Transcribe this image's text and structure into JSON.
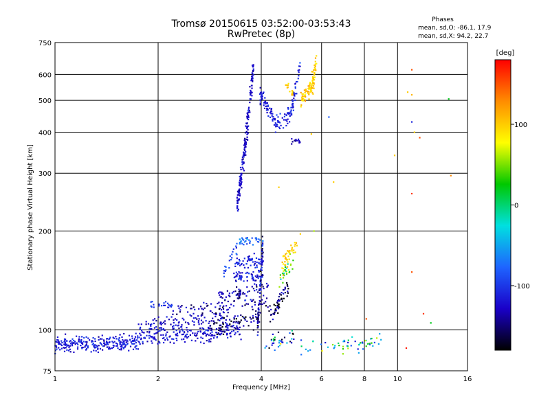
{
  "chart_data": {
    "type": "scatter",
    "title": "Tromsø 20150615 03:52:00-03:53:43",
    "subtitle": "RwPretec (8p)",
    "xlabel": "Frequency [MHz]",
    "ylabel": "Stationary phase Virtual Height [km]",
    "x_scale": "log",
    "y_scale": "log",
    "xlim": [
      1,
      16
    ],
    "ylim": [
      75,
      750
    ],
    "x_ticks": [
      1,
      2,
      4,
      6,
      8,
      10,
      16
    ],
    "x_tick_labels": [
      "1",
      "2",
      "4",
      "6",
      "8",
      "10",
      "16"
    ],
    "y_ticks": [
      75,
      100,
      200,
      300,
      400,
      500,
      600,
      750
    ],
    "y_tick_labels": [
      "75",
      "100",
      "200",
      "300",
      "400",
      "500",
      "600",
      "750"
    ],
    "grid": true,
    "legend": {
      "title": "Phases",
      "lines": [
        "mean, sd,O: -86.1, 17.9",
        "mean, sd,X:  94.2, 22.7"
      ],
      "placement": "top-right"
    },
    "colorbar": {
      "label": "[deg]",
      "range": [
        -180,
        180
      ],
      "ticks": [
        100,
        0,
        -100
      ],
      "tick_labels": [
        "100",
        "0",
        "-100"
      ],
      "colors": [
        "#ff0000",
        "#ff8c00",
        "#ffff00",
        "#00c800",
        "#00e0e0",
        "#1e64ff",
        "#1a00c8",
        "#000000"
      ]
    },
    "traces": [
      {
        "name": "",
        "segments": [
          {
            "f0": 1.0,
            "f1": 1.75,
            "h0": 90,
            "h1": 92,
            "n": 260,
            "sd": 0.028,
            "phase": -115,
            "ps": 12
          },
          {
            "f0": 1.75,
            "f1": 3.5,
            "h0": 94,
            "h1": 100,
            "n": 200,
            "sd": 0.028,
            "phase": -120,
            "ps": 12
          },
          {
            "f0": 1.75,
            "f1": 3.2,
            "h0": 102,
            "h1": 110,
            "n": 110,
            "sd": 0.03,
            "phase": -125,
            "ps": 14
          },
          {
            "f0": 1.9,
            "f1": 2.2,
            "h0": 119,
            "h1": 119,
            "n": 22,
            "sd": 0.012,
            "phase": -100,
            "ps": 10
          },
          {
            "f0": 2.2,
            "f1": 4.2,
            "h0": 114,
            "h1": 124,
            "n": 80,
            "sd": 0.025,
            "phase": -140,
            "ps": 18
          },
          {
            "f0": 2.8,
            "f1": 4.6,
            "h0": 100,
            "h1": 116,
            "n": 90,
            "sd": 0.03,
            "phase": -150,
            "ps": 22
          },
          {
            "f0": 3.0,
            "f1": 4.2,
            "h0": 126,
            "h1": 136,
            "n": 60,
            "sd": 0.02,
            "phase": -135,
            "ps": 18
          },
          {
            "f0": 3.3,
            "f1": 4.05,
            "h0": 144,
            "h1": 146,
            "n": 60,
            "sd": 0.02,
            "phase": -115,
            "ps": 15
          },
          {
            "f0": 3.35,
            "f1": 4.05,
            "h0": 160,
            "h1": 162,
            "n": 55,
            "sd": 0.02,
            "phase": -110,
            "ps": 14
          },
          {
            "f0": 3.1,
            "f1": 3.4,
            "h0": 150,
            "h1": 178,
            "n": 20,
            "sd": 0.025,
            "phase": -90,
            "ps": 12
          },
          {
            "f0": 3.45,
            "f1": 4.05,
            "h0": 185,
            "h1": 188,
            "n": 35,
            "sd": 0.018,
            "phase": -75,
            "ps": 15
          },
          {
            "f0": 3.9,
            "f1": 4.05,
            "h0": 100,
            "h1": 190,
            "n": 80,
            "sd": 0.05,
            "phase": -130,
            "ps": 25
          },
          {
            "f0": 4.3,
            "f1": 4.8,
            "h0": 112,
            "h1": 135,
            "n": 40,
            "sd": 0.03,
            "phase": -150,
            "ps": 28
          },
          {
            "f0": 4.6,
            "f1": 5.1,
            "h0": 160,
            "h1": 185,
            "n": 40,
            "sd": 0.03,
            "phase": 95,
            "ps": 12
          },
          {
            "f0": 4.5,
            "f1": 5.0,
            "h0": 140,
            "h1": 165,
            "n": 30,
            "sd": 0.03,
            "phase": 45,
            "ps": 40
          },
          {
            "f0": 4.1,
            "f1": 5.0,
            "h0": 90,
            "h1": 95,
            "n": 35,
            "sd": 0.03,
            "phase": -90,
            "ps": 70
          },
          {
            "f0": 5.2,
            "f1": 9.0,
            "h0": 88,
            "h1": 93,
            "n": 55,
            "sd": 0.03,
            "phase": -20,
            "ps": 70
          },
          {
            "f0": 3.4,
            "f1": 3.5,
            "h0": 240,
            "h1": 300,
            "n": 60,
            "sd": 0.04,
            "phase": -125,
            "ps": 10
          },
          {
            "f0": 3.5,
            "f1": 3.65,
            "h0": 300,
            "h1": 420,
            "n": 70,
            "sd": 0.05,
            "phase": -125,
            "ps": 10
          },
          {
            "f0": 3.65,
            "f1": 3.8,
            "h0": 420,
            "h1": 640,
            "n": 55,
            "sd": 0.04,
            "phase": -125,
            "ps": 10
          },
          {
            "f0": 3.95,
            "f1": 4.4,
            "h0": 520,
            "h1": 430,
            "n": 60,
            "sd": 0.03,
            "phase": -115,
            "ps": 12
          },
          {
            "f0": 4.4,
            "f1": 4.9,
            "h0": 420,
            "h1": 460,
            "n": 50,
            "sd": 0.03,
            "phase": -110,
            "ps": 12
          },
          {
            "f0": 4.9,
            "f1": 5.2,
            "h0": 470,
            "h1": 640,
            "n": 40,
            "sd": 0.03,
            "phase": -110,
            "ps": 12
          },
          {
            "f0": 4.6,
            "f1": 5.0,
            "h0": 580,
            "h1": 520,
            "n": 18,
            "sd": 0.02,
            "phase": 100,
            "ps": 10
          },
          {
            "f0": 5.2,
            "f1": 5.7,
            "h0": 500,
            "h1": 560,
            "n": 50,
            "sd": 0.03,
            "phase": 105,
            "ps": 12
          },
          {
            "f0": 5.5,
            "f1": 5.8,
            "h0": 520,
            "h1": 650,
            "n": 40,
            "sd": 0.03,
            "phase": 100,
            "ps": 12
          },
          {
            "f0": 4.9,
            "f1": 5.2,
            "h0": 375,
            "h1": 375,
            "n": 14,
            "sd": 0.01,
            "phase": -135,
            "ps": 8
          }
        ]
      }
    ],
    "scattered_points": [
      {
        "x": 11.0,
        "y": 620,
        "phase": 150
      },
      {
        "x": 10.7,
        "y": 530,
        "phase": 100
      },
      {
        "x": 11.0,
        "y": 520,
        "phase": 110
      },
      {
        "x": 11.0,
        "y": 430,
        "phase": -110
      },
      {
        "x": 11.2,
        "y": 400,
        "phase": 100
      },
      {
        "x": 11.6,
        "y": 385,
        "phase": 150
      },
      {
        "x": 14.1,
        "y": 505,
        "phase": 20
      },
      {
        "x": 11.0,
        "y": 260,
        "phase": 160
      },
      {
        "x": 14.3,
        "y": 295,
        "phase": 130
      },
      {
        "x": 6.3,
        "y": 445,
        "phase": -80
      },
      {
        "x": 6.5,
        "y": 282,
        "phase": 100
      },
      {
        "x": 9.8,
        "y": 340,
        "phase": 100
      },
      {
        "x": 11.0,
        "y": 150,
        "phase": 150
      },
      {
        "x": 12.5,
        "y": 105,
        "phase": 20
      },
      {
        "x": 11.9,
        "y": 112,
        "phase": 160
      },
      {
        "x": 8.1,
        "y": 108,
        "phase": 150
      },
      {
        "x": 10.6,
        "y": 88,
        "phase": 170
      },
      {
        "x": 5.6,
        "y": 395,
        "phase": 100
      },
      {
        "x": 4.5,
        "y": 272,
        "phase": 100
      },
      {
        "x": 5.2,
        "y": 196,
        "phase": 100
      },
      {
        "x": 5.7,
        "y": 200,
        "phase": 60
      }
    ]
  }
}
